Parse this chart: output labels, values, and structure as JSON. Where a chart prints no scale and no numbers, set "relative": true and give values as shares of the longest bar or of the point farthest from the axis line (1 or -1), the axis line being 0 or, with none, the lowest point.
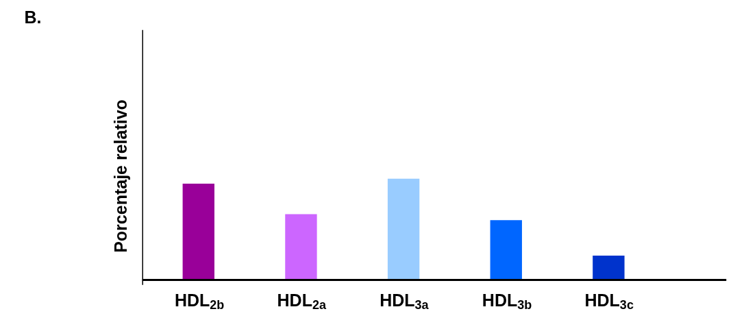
{
  "chart_data": {
    "type": "bar",
    "title": "B.",
    "ylabel": "Porcentaje relativo",
    "relative": true,
    "categories": [
      "HDL$_{2b}$",
      "HDL$_{2a}$",
      "HDL$_{3a}$",
      "HDL$_{3b}$",
      "HDL$_{3c}$"
    ],
    "values": [
      0.95,
      0.65,
      1,
      0.59,
      0.24
    ],
    "colors": [
      "#990099",
      "#cc66ff",
      "#99ccff",
      "#0066ff",
      "#0033cc"
    ],
    "grid": false
  }
}
